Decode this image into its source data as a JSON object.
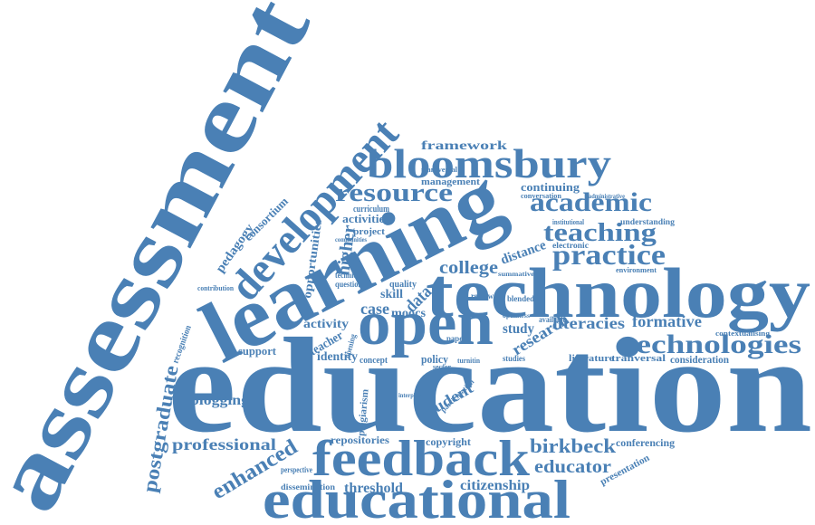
{
  "words": [
    "education",
    "assessment",
    "learning",
    "technology",
    "development",
    "bloomsbury",
    "educational",
    "feedback",
    "open",
    "technologies",
    "practice",
    "teaching",
    "academic",
    "resource",
    "framework",
    "birkbeck",
    "educator",
    "citizenship",
    "threshold",
    "professional",
    "enhanced",
    "postgraduate",
    "blogging",
    "support",
    "identity",
    "activity",
    "teacher",
    "case",
    "moocs",
    "data",
    "skill",
    "college",
    "research",
    "study",
    "literacies",
    "formative",
    "consideration",
    "literature",
    "tranversal",
    "conferencing",
    "presentation",
    "copyright",
    "repositories",
    "perspective",
    "dissemination",
    "student",
    "plagiarism",
    "policy",
    "concept",
    "higher",
    "opportunities",
    "pedagogy",
    "consortium",
    "curriculum",
    "activities",
    "project",
    "quality",
    "question",
    "technical",
    "distance",
    "continuing",
    "conversation",
    "management",
    "transversal",
    "institutional",
    "understanding",
    "administrative",
    "electronic",
    "environment",
    "summative",
    "review",
    "blended",
    "available",
    "contextualising",
    "contribution",
    "recognition",
    "paper",
    "openness",
    "sector",
    "turnitin",
    "studies",
    "interplay",
    "participation",
    "opening",
    "communities"
  ]
}
